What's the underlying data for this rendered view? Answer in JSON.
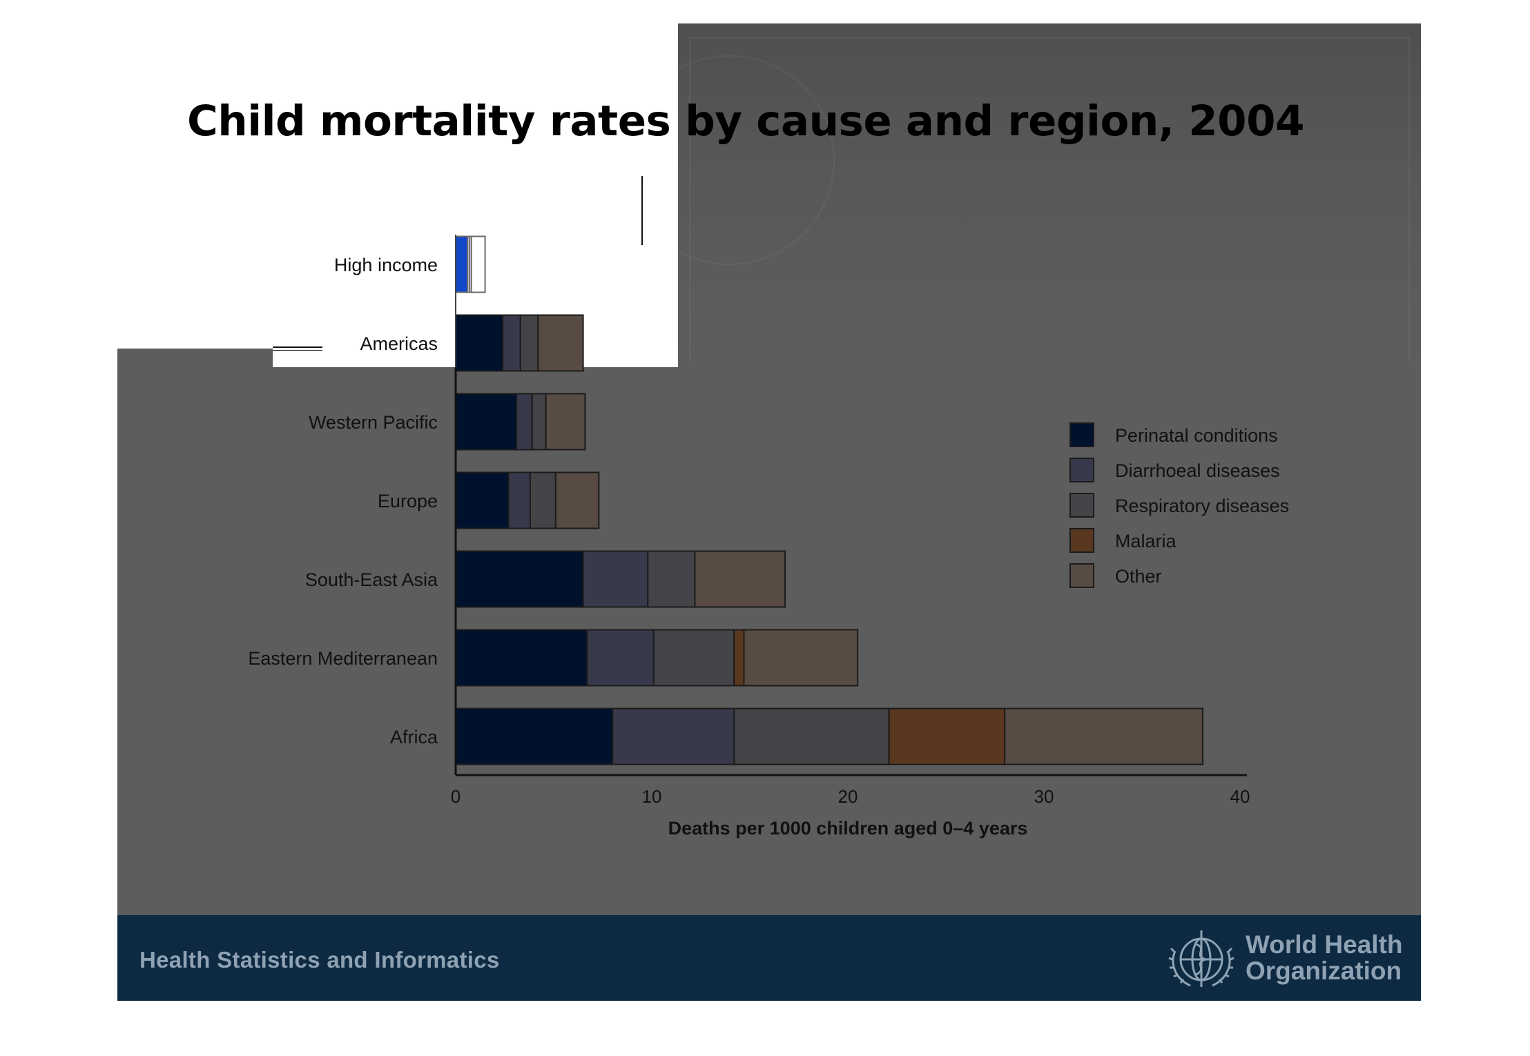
{
  "page_title": "Child mortality rates by cause and region, 2004",
  "footer": {
    "text": "Health Statistics and Informatics",
    "org_line1": "World Health",
    "org_line2": "Organization",
    "logo_icon": "who-emblem-icon"
  },
  "colors": {
    "slide_bg": "#5d5d5d",
    "footer_bg": "#0e2a42",
    "footer_text": "#8ea2b3"
  },
  "chart_data": {
    "type": "bar",
    "orientation": "horizontal",
    "stacked": true,
    "title": "",
    "xlabel": "Deaths per 1000 children aged 0–4 years",
    "ylabel": "",
    "xlim": [
      0,
      40
    ],
    "xticks": [
      0,
      10,
      20,
      30,
      40
    ],
    "grid": false,
    "legend_position": "right",
    "categories": [
      "High income",
      "Americas",
      "Western Pacific",
      "Europe",
      "South-East Asia",
      "Eastern Mediterranean",
      "Africa"
    ],
    "series": [
      {
        "name": "Perinatal conditions",
        "color": "#00112d",
        "color_on_white": "#1048c8",
        "values": [
          0.6,
          2.4,
          3.1,
          2.7,
          6.5,
          6.7,
          8.0
        ]
      },
      {
        "name": "Diarrhoeal diseases",
        "color": "#383a4b",
        "color_on_white": "#dcdcff",
        "values": [
          0.1,
          0.9,
          0.8,
          1.1,
          3.3,
          3.4,
          6.2
        ]
      },
      {
        "name": "Respiratory diseases",
        "color": "#444448",
        "color_on_white": "#ffffff",
        "values": [
          0.1,
          0.9,
          0.7,
          1.3,
          2.4,
          4.1,
          7.9
        ]
      },
      {
        "name": "Malaria",
        "color": "#5a3820",
        "color_on_white": "#ffffff",
        "values": [
          0.0,
          0.0,
          0.0,
          0.0,
          0.0,
          0.5,
          5.9
        ]
      },
      {
        "name": "Other",
        "color": "#574b43",
        "color_on_white": "#ffffff",
        "values": [
          0.7,
          2.3,
          2.0,
          2.2,
          4.6,
          5.8,
          10.1
        ]
      }
    ]
  }
}
